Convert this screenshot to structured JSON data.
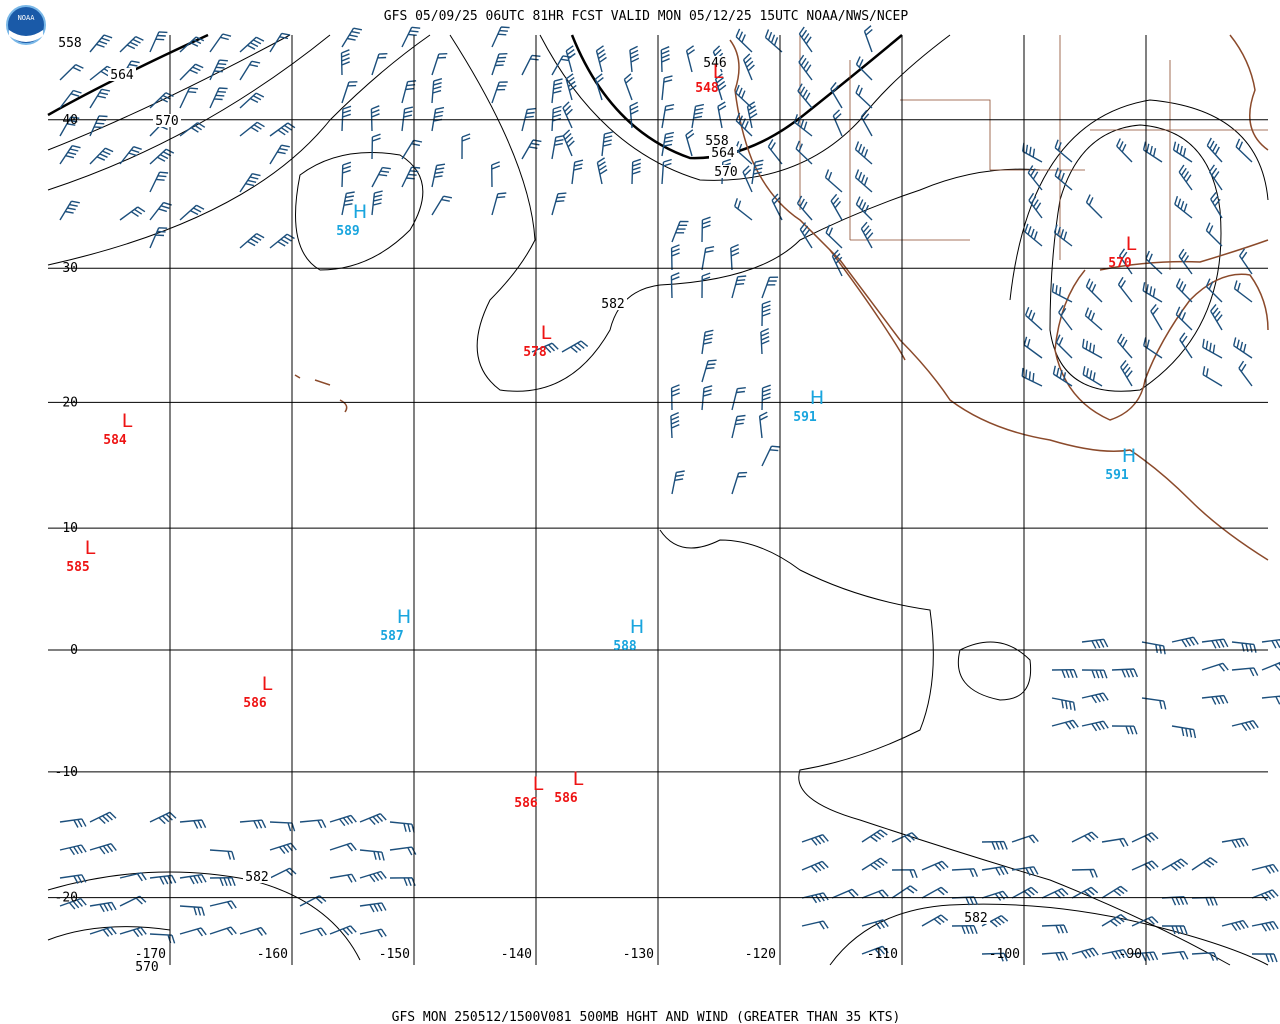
{
  "header": {
    "title": "GFS 05/09/25 06UTC 81HR FCST VALID MON 05/12/25 15UTC NOAA/NWS/NCEP",
    "logo": "NOAA"
  },
  "map": {
    "latitudes": [
      40,
      30,
      20,
      10,
      0,
      -10,
      -20
    ],
    "longitudes": [
      -170,
      -160,
      -150,
      -140,
      -130,
      -120,
      -110,
      -100,
      -90
    ],
    "contour_labels": [
      558,
      564,
      570,
      546,
      558,
      564,
      570,
      582,
      582,
      570,
      582
    ],
    "centers": [
      {
        "kind": "L",
        "value": 548
      },
      {
        "kind": "H",
        "value": 589
      },
      {
        "kind": "L",
        "value": 578
      },
      {
        "kind": "L",
        "value": 584
      },
      {
        "kind": "L",
        "value": 585
      },
      {
        "kind": "H",
        "value": 587
      },
      {
        "kind": "H",
        "value": 588
      },
      {
        "kind": "L",
        "value": 586
      },
      {
        "kind": "L",
        "value": 586
      },
      {
        "kind": "L",
        "value": 586
      },
      {
        "kind": "H",
        "value": 591
      },
      {
        "kind": "H",
        "value": 591
      },
      {
        "kind": "L",
        "value": 570
      }
    ]
  },
  "footer": {
    "caption": "GFS MON 250512/1500V081 500MB HGHT AND WIND (GREATER THAN 35 KTS)"
  }
}
